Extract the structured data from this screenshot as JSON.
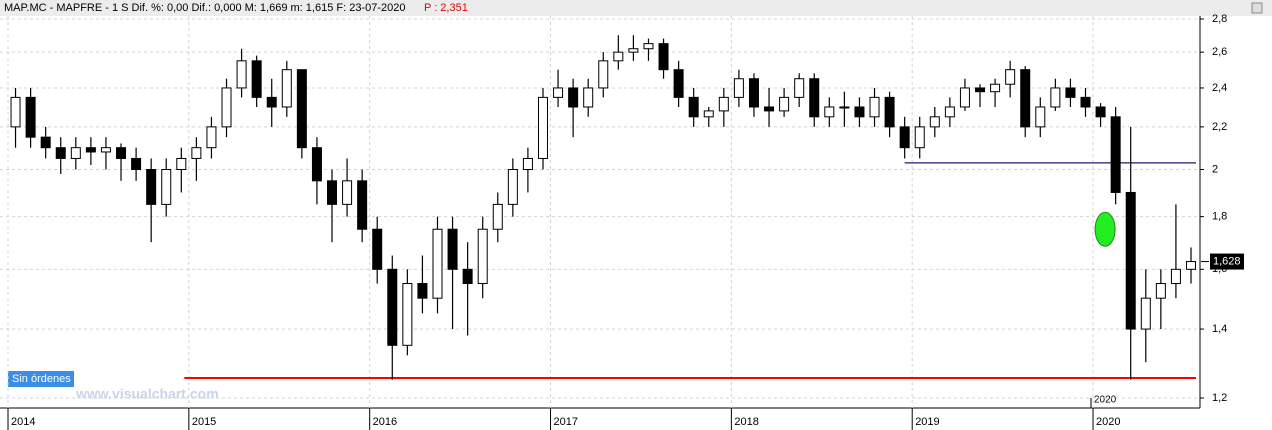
{
  "chart_data": {
    "type": "candlestick",
    "header": "MAP.MC - MAPFRE -  1 S  Dif. %: 0,00  Dif.: 0,000  M: 1,669  m: 1,615  F: 23-07-2020",
    "header_price": "P : 2,351",
    "orders_label": "Sin órdenes",
    "watermark": "www.visualchart.com",
    "year_marker": "2020",
    "log_scale": true,
    "grid": true,
    "ylim": [
      1.2,
      2.8
    ],
    "yticks": [
      {
        "value": 1.2,
        "label": "1,2"
      },
      {
        "value": 1.4,
        "label": "1,4"
      },
      {
        "value": 1.6,
        "label": "1,6"
      },
      {
        "value": 1.8,
        "label": "1,8"
      },
      2,
      {
        "value": 2.2,
        "label": "2,2"
      },
      {
        "value": 2.4,
        "label": "2,4"
      },
      {
        "value": 2.6,
        "label": "2,6"
      },
      {
        "value": 2.8,
        "label": "2,8"
      }
    ],
    "xticks": [
      "2014",
      "2015",
      "2016",
      "2017",
      "2018",
      "2019",
      "2020"
    ],
    "open": [
      2.2,
      2.35,
      2.15,
      2.1,
      2.05,
      2.1,
      2.08,
      2.1,
      2.05,
      2.0,
      1.85,
      2.0,
      2.05,
      2.1,
      2.2,
      2.4,
      2.55,
      2.35,
      2.3,
      2.5,
      2.1,
      1.95,
      1.85,
      1.95,
      1.75,
      1.6,
      1.35,
      1.55,
      1.5,
      1.75,
      1.6,
      1.55,
      1.75,
      1.85,
      2.0,
      2.05,
      2.35,
      2.4,
      2.3,
      2.4,
      2.55,
      2.6,
      2.62,
      2.65,
      2.5,
      2.35,
      2.25,
      2.28,
      2.35,
      2.45,
      2.3,
      2.28,
      2.35,
      2.45,
      2.25,
      2.3,
      2.3,
      2.25,
      2.35,
      2.2,
      2.1,
      2.2,
      2.25,
      2.3,
      2.4,
      2.38,
      2.42,
      2.5,
      2.2,
      2.3,
      2.4,
      2.35,
      2.3,
      2.25,
      1.9,
      1.4,
      1.5,
      1.55,
      1.6
    ],
    "high": [
      2.4,
      2.4,
      2.2,
      2.15,
      2.15,
      2.15,
      2.15,
      2.12,
      2.1,
      2.05,
      2.05,
      2.1,
      2.15,
      2.25,
      2.45,
      2.62,
      2.58,
      2.45,
      2.55,
      2.5,
      2.15,
      2.0,
      2.05,
      2.0,
      1.8,
      1.65,
      1.6,
      1.65,
      1.8,
      1.8,
      1.7,
      1.8,
      1.9,
      2.05,
      2.1,
      2.4,
      2.5,
      2.45,
      2.45,
      2.6,
      2.7,
      2.7,
      2.68,
      2.68,
      2.55,
      2.4,
      2.3,
      2.4,
      2.5,
      2.48,
      2.4,
      2.4,
      2.48,
      2.48,
      2.35,
      2.38,
      2.35,
      2.4,
      2.38,
      2.25,
      2.25,
      2.3,
      2.35,
      2.45,
      2.42,
      2.45,
      2.55,
      2.52,
      2.35,
      2.45,
      2.45,
      2.4,
      2.32,
      2.3,
      2.2,
      1.6,
      1.6,
      1.85,
      1.68
    ],
    "low": [
      2.1,
      2.1,
      2.05,
      1.98,
      2.0,
      2.02,
      2.0,
      1.95,
      1.95,
      1.7,
      1.8,
      1.9,
      1.95,
      2.05,
      2.15,
      2.35,
      2.3,
      2.2,
      2.25,
      2.05,
      1.85,
      1.7,
      1.8,
      1.7,
      1.55,
      1.25,
      1.32,
      1.45,
      1.45,
      1.4,
      1.38,
      1.5,
      1.7,
      1.8,
      1.9,
      2.0,
      2.3,
      2.15,
      2.25,
      2.35,
      2.5,
      2.55,
      2.55,
      2.45,
      2.3,
      2.2,
      2.2,
      2.2,
      2.3,
      2.25,
      2.2,
      2.25,
      2.3,
      2.2,
      2.2,
      2.2,
      2.2,
      2.2,
      2.15,
      2.05,
      2.05,
      2.15,
      2.2,
      2.28,
      2.3,
      2.3,
      2.35,
      2.15,
      2.15,
      2.28,
      2.3,
      2.25,
      2.2,
      1.85,
      1.25,
      1.3,
      1.4,
      1.5,
      1.55
    ],
    "close": [
      2.35,
      2.15,
      2.1,
      2.05,
      2.1,
      2.08,
      2.1,
      2.05,
      2.0,
      1.85,
      2.0,
      2.05,
      2.1,
      2.2,
      2.4,
      2.55,
      2.35,
      2.3,
      2.5,
      2.1,
      1.95,
      1.85,
      1.95,
      1.75,
      1.6,
      1.35,
      1.55,
      1.5,
      1.75,
      1.6,
      1.55,
      1.75,
      1.85,
      2.0,
      2.05,
      2.35,
      2.4,
      2.3,
      2.4,
      2.55,
      2.6,
      2.62,
      2.65,
      2.5,
      2.35,
      2.25,
      2.28,
      2.35,
      2.45,
      2.3,
      2.28,
      2.35,
      2.45,
      2.25,
      2.3,
      2.3,
      2.25,
      2.35,
      2.2,
      2.1,
      2.2,
      2.25,
      2.3,
      2.4,
      2.38,
      2.42,
      2.5,
      2.2,
      2.3,
      2.4,
      2.35,
      2.3,
      2.25,
      1.9,
      1.4,
      1.5,
      1.55,
      1.6,
      1.628
    ],
    "last_price": {
      "value": 1.628,
      "label": "1,628"
    },
    "levels": [
      {
        "value": 2.03,
        "color": "#1c1c6b"
      },
      {
        "value": 1.255,
        "color": "#ff0000"
      }
    ],
    "marker": {
      "value": 1.75,
      "color": "#22ee22"
    }
  }
}
